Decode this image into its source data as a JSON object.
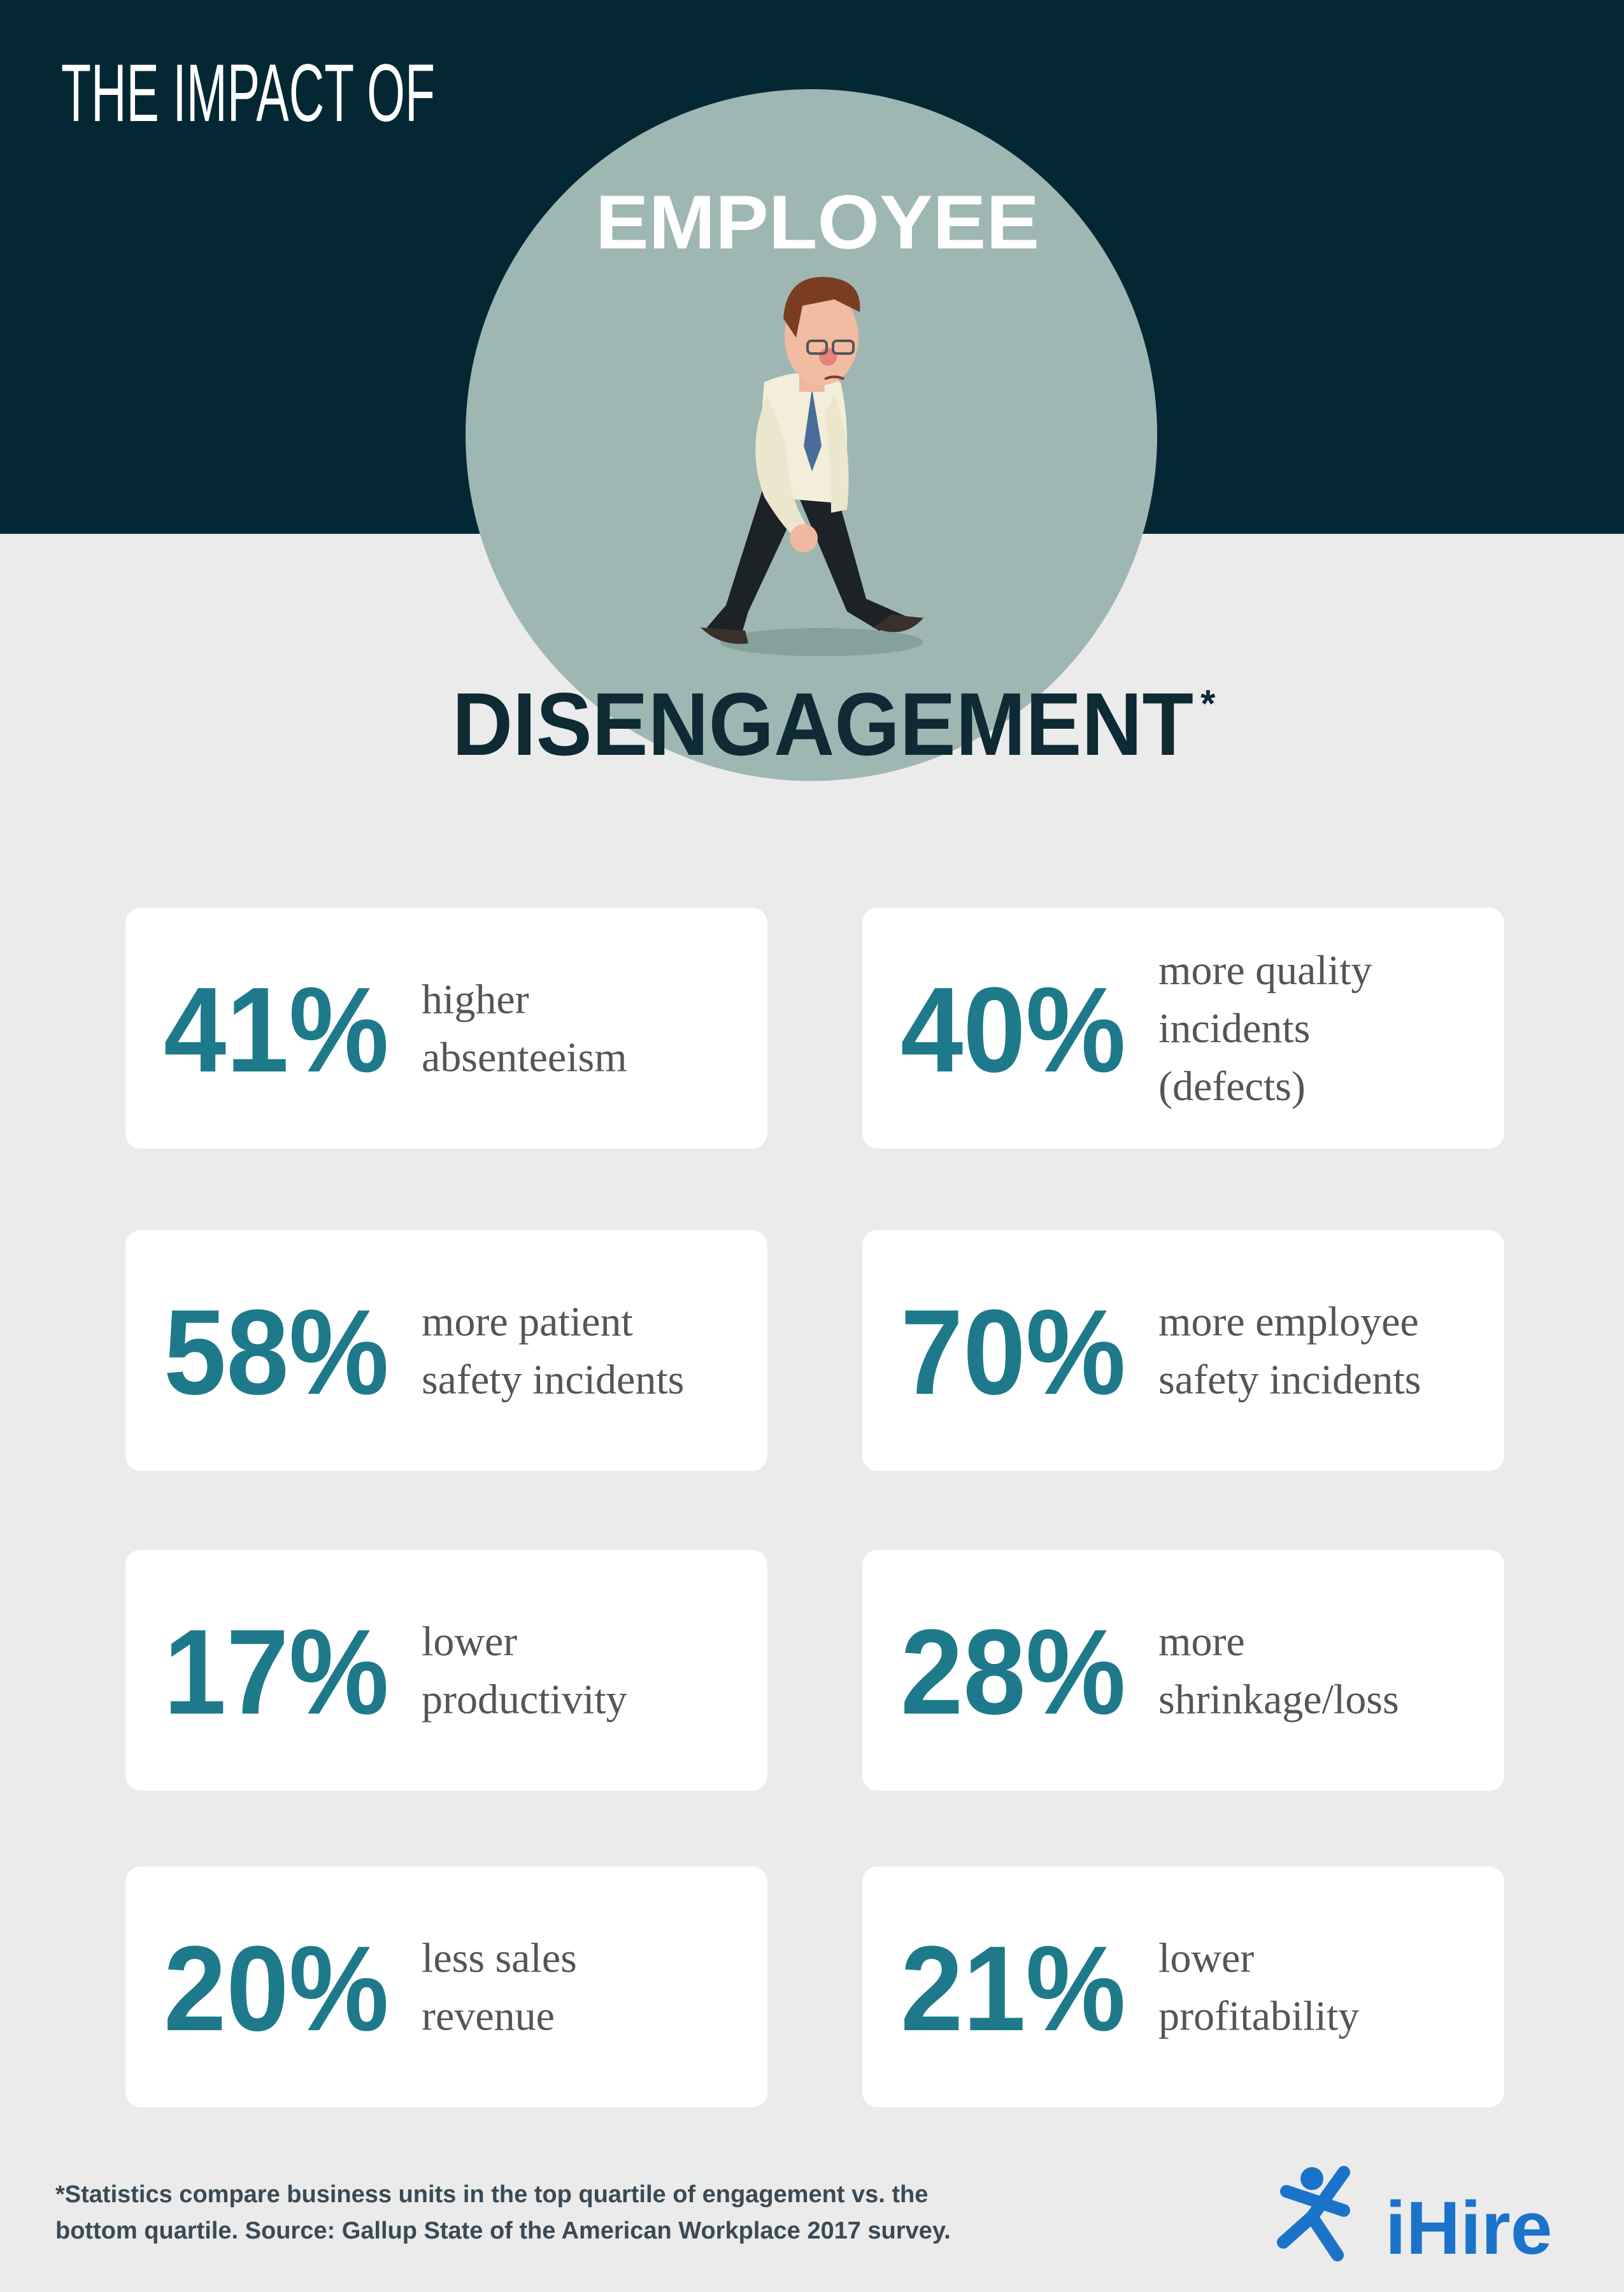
{
  "header": {
    "kicker": "THE IMPACT OF",
    "title_top": "EMPLOYEE",
    "title_bottom": "DISENGAGEMENT",
    "asterisk": "*"
  },
  "cards": [
    {
      "stat": "41%",
      "lines": [
        "higher",
        "absenteeism"
      ]
    },
    {
      "stat": "40%",
      "lines": [
        "more quality",
        "incidents",
        "(defects)"
      ]
    },
    {
      "stat": "58%",
      "lines": [
        "more patient",
        "safety incidents"
      ]
    },
    {
      "stat": "70%",
      "lines": [
        "more employee",
        "safety incidents"
      ]
    },
    {
      "stat": "17%",
      "lines": [
        "lower",
        "productivity"
      ]
    },
    {
      "stat": "28%",
      "lines": [
        "more",
        "shrinkage/loss"
      ]
    },
    {
      "stat": "20%",
      "lines": [
        "less sales",
        "revenue"
      ]
    },
    {
      "stat": "21%",
      "lines": [
        "lower",
        "profitability"
      ]
    }
  ],
  "footnote": [
    "*Statistics compare business units in the top quartile of engagement vs. the",
    "bottom quartile. Source: Gallup State of the American Workplace 2017 survey."
  ],
  "logo": "iHire"
}
